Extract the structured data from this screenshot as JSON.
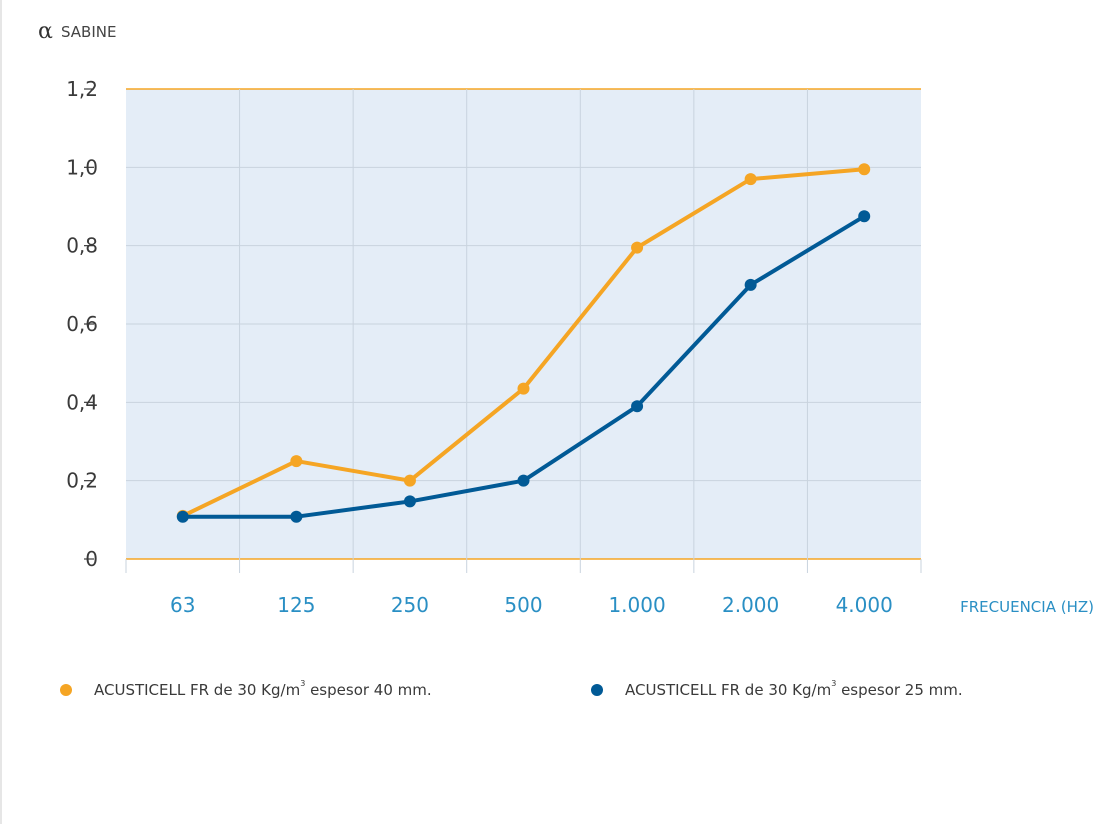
{
  "colors": {
    "orange": "#f5a524",
    "blue": "#015a96",
    "plot_bg": "#e4edf7",
    "grid": "#c9d3de",
    "frame_line": "#f5a524"
  },
  "chart_data": {
    "type": "line",
    "ylabel_symbol": "α",
    "ylabel": "SABINE",
    "xlabel": "FRECUENCIA (HZ)",
    "categories": [
      "63",
      "125",
      "250",
      "500",
      "1.000",
      "2.000",
      "4.000"
    ],
    "yticks": [
      "0",
      "0,2",
      "0,4",
      "0,6",
      "0,8",
      "1,0",
      "1,2"
    ],
    "ylim": [
      0,
      1.2
    ],
    "grid": true,
    "legend_position": "bottom",
    "series": [
      {
        "name_prefix": "ACUSTICELL FR de 30 Kg/m",
        "name_sup": "3",
        "name_suffix": " espesor 40 mm.",
        "color": "#f5a524",
        "values": [
          0.11,
          0.25,
          0.2,
          0.435,
          0.795,
          0.97,
          0.995
        ]
      },
      {
        "name_prefix": "ACUSTICELL FR de 30 Kg/m",
        "name_sup": "3",
        "name_suffix": " espesor 25 mm.",
        "color": "#015a96",
        "values": [
          0.108,
          0.108,
          0.147,
          0.2,
          0.39,
          0.7,
          0.875
        ]
      }
    ]
  }
}
